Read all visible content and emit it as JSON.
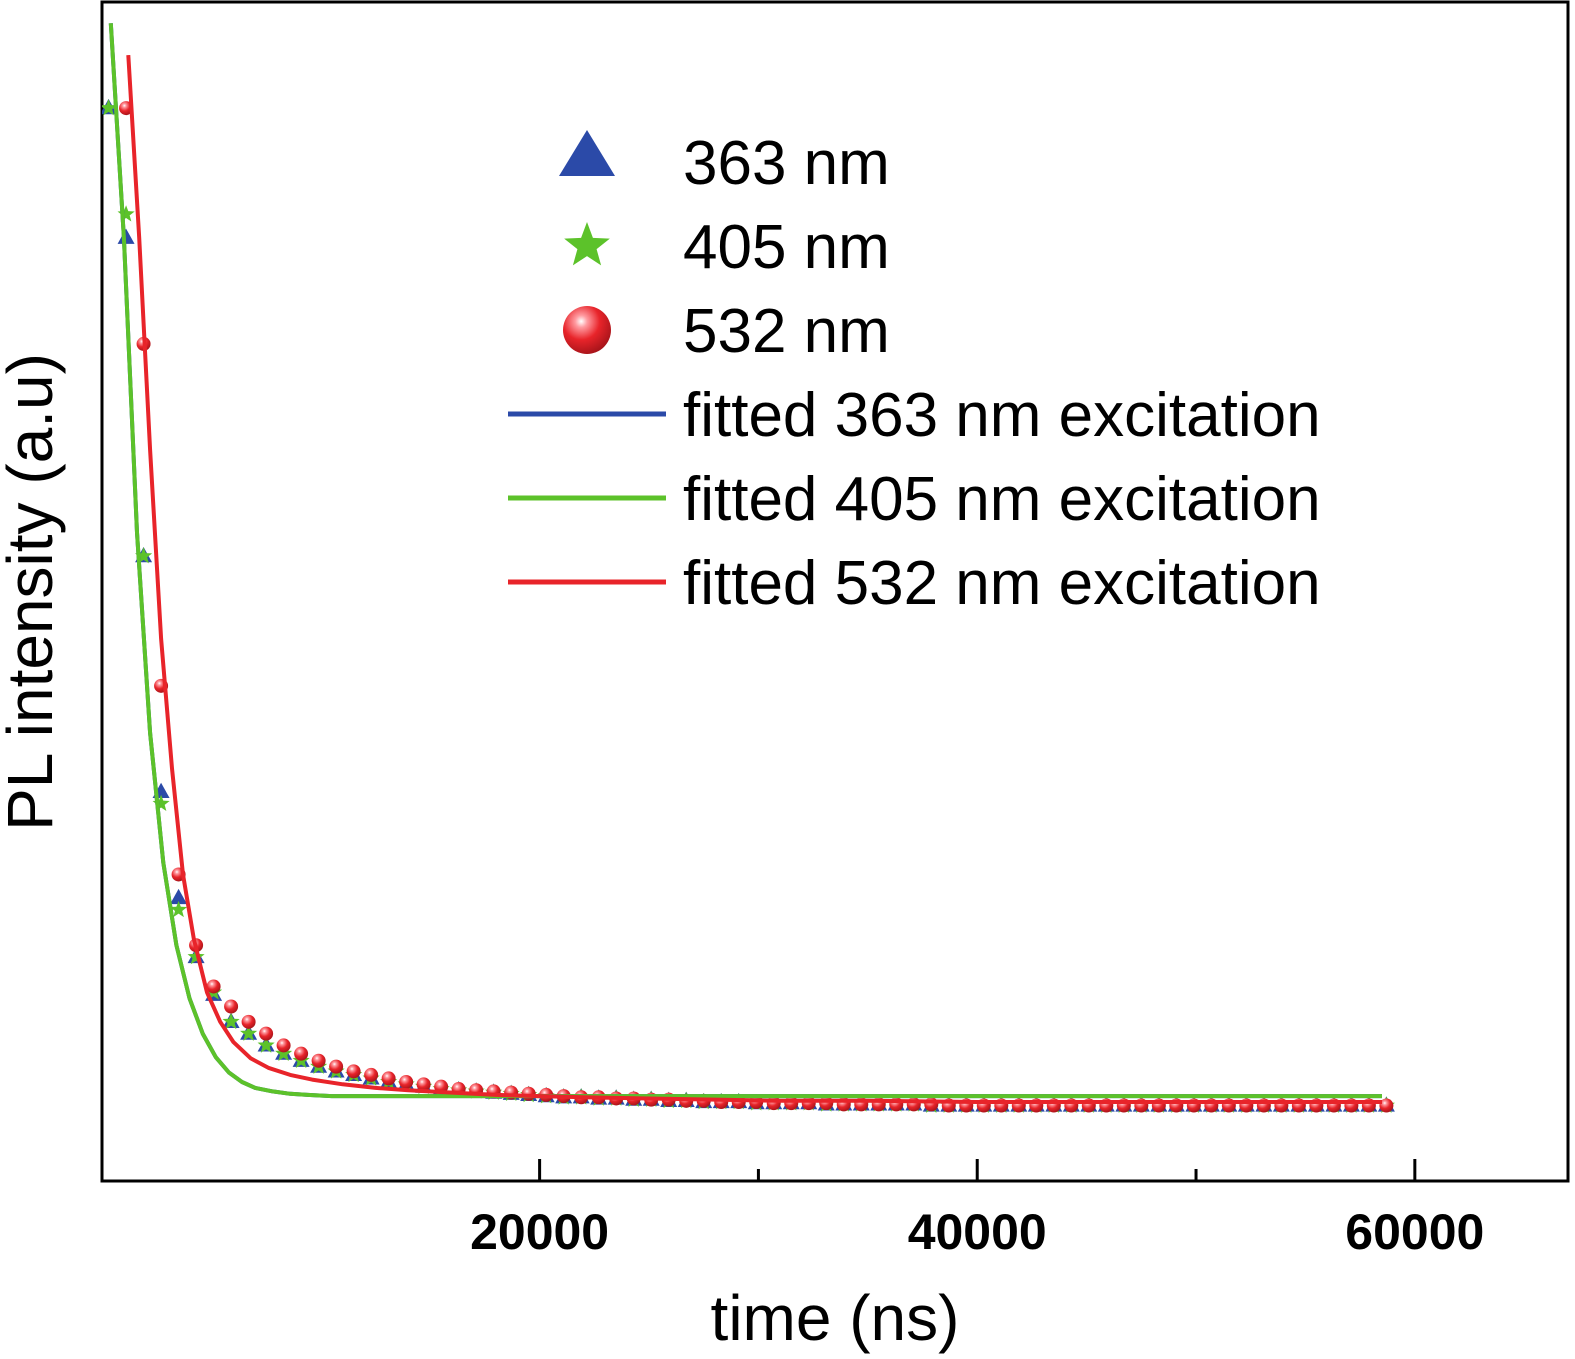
{
  "chart_data": {
    "type": "scatter",
    "xlabel": "time (ns)",
    "ylabel": "PL intensity (a.u)",
    "xlim": [
      0,
      67000
    ],
    "ylim": [
      0,
      1.0
    ],
    "x_ticks": [
      20000,
      40000,
      60000
    ],
    "x_minor_ticks": [
      30000,
      50000
    ],
    "y_ticks_labeled": false,
    "grid": false,
    "legend_position": "top-right",
    "colors": {
      "s363": "#2b4aa8",
      "s405": "#5cc22a",
      "s532": "#e8242a"
    },
    "series": [
      {
        "name": "363 nm",
        "kind": "points",
        "marker": "triangle",
        "color": "#2b4aa8",
        "x": [
          300,
          1100,
          1900,
          2700,
          3500,
          4300,
          5100,
          5900,
          6700,
          7500,
          8300,
          9100,
          9900,
          10700,
          11500,
          12300,
          13100,
          13900,
          14700,
          15500,
          16300,
          17100,
          17900,
          18700,
          19500,
          20300,
          21100,
          21900,
          22700,
          23500,
          24300,
          25100,
          25900,
          26700,
          27500,
          28300,
          29100,
          29900,
          30700,
          31500,
          32300,
          33100,
          33900,
          34700,
          35500,
          36300,
          37100,
          37900,
          38700,
          39500,
          40300,
          41100,
          41900,
          42700,
          43500,
          44300,
          45100,
          45900,
          46700,
          47500,
          48300,
          49100,
          49900,
          50700,
          51500,
          52300,
          53100,
          53900,
          54700,
          55500,
          56300,
          57100,
          57900,
          58700
        ],
        "y": [
          0.91,
          0.8,
          0.53,
          0.33,
          0.24,
          0.19,
          0.158,
          0.135,
          0.125,
          0.115,
          0.108,
          0.102,
          0.097,
          0.093,
          0.09,
          0.087,
          0.084,
          0.082,
          0.08,
          0.078,
          0.077,
          0.076,
          0.075,
          0.074,
          0.073,
          0.072,
          0.071,
          0.071,
          0.07,
          0.07,
          0.069,
          0.069,
          0.068,
          0.068,
          0.067,
          0.067,
          0.067,
          0.066,
          0.066,
          0.066,
          0.066,
          0.065,
          0.065,
          0.065,
          0.065,
          0.065,
          0.065,
          0.064,
          0.064,
          0.064,
          0.064,
          0.064,
          0.064,
          0.064,
          0.064,
          0.064,
          0.064,
          0.064,
          0.064,
          0.064,
          0.064,
          0.064,
          0.064,
          0.064,
          0.064,
          0.064,
          0.064,
          0.064,
          0.064,
          0.064,
          0.064,
          0.064,
          0.064,
          0.064
        ]
      },
      {
        "name": "405 nm",
        "kind": "points",
        "marker": "star",
        "color": "#5cc22a",
        "x": [
          300,
          1100,
          1900,
          2700,
          3500,
          4300,
          5100,
          5900,
          6700,
          7500,
          8300,
          9100,
          9900,
          10700,
          11500,
          12300,
          13100,
          13900,
          14700,
          15500,
          16300,
          17100,
          17900,
          18700,
          19500,
          20300,
          21100,
          21900,
          22700,
          23500,
          24300,
          25100,
          25900,
          26700,
          27500,
          28300,
          29100,
          29900,
          30700,
          31500,
          32300,
          33100,
          33900,
          34700,
          35500,
          36300,
          37100,
          37900,
          38700,
          39500,
          40300,
          41100,
          41900,
          42700,
          43500,
          44300,
          45100,
          45900,
          46700,
          47500,
          48300,
          49100,
          49900,
          50700,
          51500,
          52300,
          53100,
          53900,
          54700,
          55500,
          56300,
          57100,
          57900,
          58700
        ],
        "y": [
          0.91,
          0.82,
          0.53,
          0.32,
          0.23,
          0.19,
          0.16,
          0.135,
          0.125,
          0.115,
          0.108,
          0.102,
          0.097,
          0.093,
          0.09,
          0.087,
          0.084,
          0.082,
          0.08,
          0.078,
          0.077,
          0.076,
          0.075,
          0.074,
          0.073,
          0.072,
          0.071,
          0.071,
          0.07,
          0.07,
          0.069,
          0.069,
          0.068,
          0.068,
          0.067,
          0.067,
          0.067,
          0.066,
          0.066,
          0.066,
          0.066,
          0.065,
          0.065,
          0.065,
          0.065,
          0.065,
          0.065,
          0.064,
          0.064,
          0.064,
          0.064,
          0.064,
          0.064,
          0.064,
          0.064,
          0.064,
          0.064,
          0.064,
          0.064,
          0.064,
          0.064,
          0.064,
          0.064,
          0.064,
          0.064,
          0.064,
          0.064,
          0.064,
          0.064,
          0.064,
          0.064,
          0.064,
          0.064,
          0.064
        ]
      },
      {
        "name": "532 nm",
        "kind": "points",
        "marker": "sphere",
        "color": "#e8242a",
        "x": [
          1100,
          1900,
          2700,
          3500,
          4300,
          5100,
          5900,
          6700,
          7500,
          8300,
          9100,
          9900,
          10700,
          11500,
          12300,
          13100,
          13900,
          14700,
          15500,
          16300,
          17100,
          17900,
          18700,
          19500,
          20300,
          21100,
          21900,
          22700,
          23500,
          24300,
          25100,
          25900,
          26700,
          27500,
          28300,
          29100,
          29900,
          30700,
          31500,
          32300,
          33100,
          33900,
          34700,
          35500,
          36300,
          37100,
          37900,
          38700,
          39500,
          40300,
          41100,
          41900,
          42700,
          43500,
          44300,
          45100,
          45900,
          46700,
          47500,
          48300,
          49100,
          49900,
          50700,
          51500,
          52300,
          53100,
          53900,
          54700,
          55500,
          56300,
          57100,
          57900,
          58700
        ],
        "y": [
          0.91,
          0.71,
          0.42,
          0.26,
          0.2,
          0.165,
          0.148,
          0.135,
          0.125,
          0.115,
          0.108,
          0.102,
          0.097,
          0.093,
          0.09,
          0.087,
          0.084,
          0.082,
          0.08,
          0.078,
          0.077,
          0.076,
          0.075,
          0.074,
          0.073,
          0.072,
          0.071,
          0.071,
          0.07,
          0.07,
          0.069,
          0.069,
          0.068,
          0.068,
          0.067,
          0.067,
          0.067,
          0.066,
          0.066,
          0.066,
          0.066,
          0.065,
          0.065,
          0.065,
          0.065,
          0.065,
          0.065,
          0.064,
          0.064,
          0.064,
          0.064,
          0.064,
          0.064,
          0.064,
          0.064,
          0.064,
          0.064,
          0.064,
          0.064,
          0.064,
          0.064,
          0.064,
          0.064,
          0.064,
          0.064,
          0.064,
          0.064,
          0.064,
          0.064,
          0.064,
          0.064,
          0.064,
          0.064
        ]
      },
      {
        "name": "fitted 363 nm excitation",
        "kind": "line",
        "color": "#2b4aa8",
        "x": [
          400,
          1000,
          1600,
          2200,
          2800,
          3400,
          4000,
          4600,
          5200,
          5800,
          6400,
          7000,
          7800,
          8600,
          9400,
          10500,
          12000,
          14000,
          17000,
          20000,
          25000,
          30000,
          35000,
          40000,
          45000,
          50000,
          55000,
          58500
        ],
        "y": [
          0.982,
          0.8,
          0.55,
          0.38,
          0.27,
          0.2,
          0.155,
          0.125,
          0.105,
          0.092,
          0.084,
          0.079,
          0.076,
          0.074,
          0.073,
          0.072,
          0.072,
          0.072,
          0.072,
          0.072,
          0.072,
          0.072,
          0.072,
          0.072,
          0.072,
          0.072,
          0.072,
          0.072
        ]
      },
      {
        "name": "fitted 405 nm excitation",
        "kind": "line",
        "color": "#5cc22a",
        "x": [
          400,
          1000,
          1600,
          2200,
          2800,
          3400,
          4000,
          4600,
          5200,
          5800,
          6400,
          7000,
          7800,
          8600,
          9400,
          10500,
          12000,
          14000,
          17000,
          20000,
          25000,
          30000,
          35000,
          40000,
          45000,
          50000,
          55000,
          58500
        ],
        "y": [
          0.982,
          0.8,
          0.55,
          0.38,
          0.27,
          0.2,
          0.155,
          0.125,
          0.105,
          0.092,
          0.084,
          0.079,
          0.076,
          0.074,
          0.073,
          0.072,
          0.072,
          0.072,
          0.072,
          0.072,
          0.072,
          0.072,
          0.072,
          0.072,
          0.072,
          0.072,
          0.072,
          0.072
        ]
      },
      {
        "name": "fitted 532 nm excitation",
        "kind": "line",
        "color": "#e8242a",
        "x": [
          1200,
          1700,
          2200,
          2700,
          3200,
          3700,
          4200,
          4800,
          5400,
          6000,
          6800,
          7600,
          8600,
          9600,
          11000,
          12500,
          14000,
          16000,
          18000,
          20000,
          22000,
          25000,
          28000,
          31000,
          35000,
          40000,
          45000,
          50000,
          55000,
          58500
        ],
        "y": [
          0.955,
          0.8,
          0.62,
          0.46,
          0.35,
          0.26,
          0.205,
          0.16,
          0.135,
          0.118,
          0.104,
          0.096,
          0.09,
          0.086,
          0.082,
          0.079,
          0.077,
          0.075,
          0.073,
          0.072,
          0.071,
          0.07,
          0.069,
          0.068,
          0.068,
          0.067,
          0.067,
          0.067,
          0.067,
          0.067
        ]
      }
    ]
  }
}
